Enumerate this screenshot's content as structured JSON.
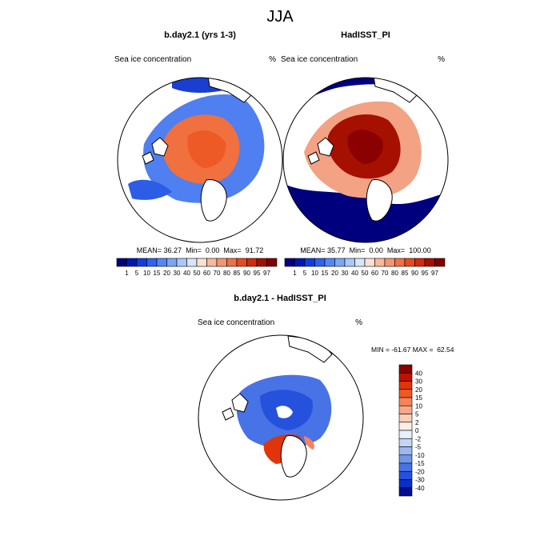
{
  "chart_data": {
    "type": "heatmap",
    "title": "JJA",
    "panels": [
      {
        "id": "model",
        "title": "b.day2.1 (yrs 1-3)",
        "left_label": "Sea ice concentration",
        "right_label": "%",
        "stats": {
          "mean_label": "MEAN=",
          "mean": "36.27",
          "min_label": "Min=",
          "min": "0.00",
          "max_label": "Max=",
          "max": "91.72"
        },
        "ice_extent_deg": 70,
        "peak_value": 85
      },
      {
        "id": "obs",
        "title": "HadISST_PI",
        "left_label": "Sea ice concentration",
        "right_label": "%",
        "stats": {
          "mean_label": "MEAN=",
          "mean": "35.77",
          "min_label": "Min=",
          "min": "0.00",
          "max_label": "Max=",
          "max": "100.00"
        },
        "ice_extent_deg": 72,
        "peak_value": 97
      },
      {
        "id": "diff",
        "title": "b.day2.1 - HadISST_PI",
        "left_label": "Sea ice concentration",
        "right_label": "%",
        "stats_text": "MIN = -61.67 MAX =  62.54",
        "central_anomaly": -30,
        "atlantic_anomaly": 30
      }
    ],
    "colorbar_abs": {
      "levels": [
        "1",
        "5",
        "10",
        "15",
        "20",
        "30",
        "40",
        "50",
        "60",
        "70",
        "80",
        "85",
        "90",
        "95",
        "97"
      ],
      "colors": [
        "#00007f",
        "#0017b4",
        "#0f3fe0",
        "#2e62f0",
        "#5287f5",
        "#7aa7f7",
        "#a8c7fb",
        "#d7e6fc",
        "#fce0d2",
        "#f9b99b",
        "#f59672",
        "#f07047",
        "#e94a20",
        "#d42a0a",
        "#a51000",
        "#7f0000"
      ]
    },
    "colorbar_diff": {
      "levels": [
        "40",
        "30",
        "20",
        "15",
        "10",
        "5",
        "2",
        "0",
        "-2",
        "-5",
        "-10",
        "-15",
        "-20",
        "-30",
        "-40"
      ],
      "colors": [
        "#8b0000",
        "#c01000",
        "#e0340a",
        "#ee5a25",
        "#f5845a",
        "#f8a888",
        "#fbcdb8",
        "#fdeee6",
        "#e9f0fd",
        "#c4d5f8",
        "#9bb8f3",
        "#6f95ee",
        "#4873e6",
        "#2651dc",
        "#0b2fc4",
        "#000f8e"
      ]
    },
    "units": "%"
  }
}
